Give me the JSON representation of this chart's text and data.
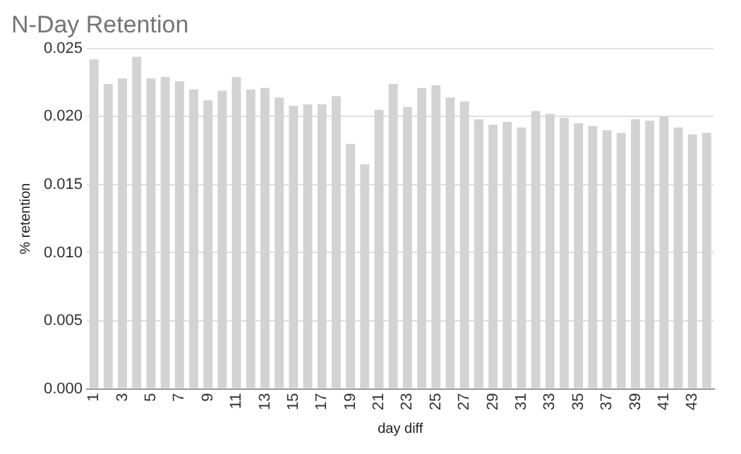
{
  "chart_data": {
    "type": "bar",
    "title": "N-Day Retention",
    "xlabel": "day diff",
    "ylabel": "% retention",
    "categories": [
      "1",
      null,
      "3",
      null,
      "5",
      null,
      "7",
      null,
      "9",
      null,
      "11",
      null,
      "13",
      null,
      "15",
      null,
      "17",
      null,
      "19",
      null,
      "21",
      null,
      "23",
      null,
      "25",
      null,
      "27",
      null,
      "29",
      null,
      "31",
      null,
      "33",
      null,
      "35",
      null,
      "37",
      null,
      "39",
      null,
      "41",
      null,
      "43",
      null
    ],
    "values": [
      0.0242,
      0.0224,
      0.0228,
      0.0244,
      0.0228,
      0.0229,
      0.0226,
      0.022,
      0.0212,
      0.0219,
      0.0229,
      0.022,
      0.0221,
      0.0214,
      0.0208,
      0.0209,
      0.0209,
      0.0215,
      0.018,
      0.0165,
      0.0205,
      0.0224,
      0.0207,
      0.0221,
      0.0223,
      0.0214,
      0.0211,
      0.0198,
      0.0194,
      0.0196,
      0.0192,
      0.0204,
      0.0202,
      0.0199,
      0.0195,
      0.0193,
      0.019,
      0.0188,
      0.0198,
      0.0197,
      0.02,
      0.0192,
      0.0187,
      0.0188
    ],
    "color": "#d3d3d3",
    "ylim": [
      0,
      0.025
    ],
    "yticks": [
      {
        "value": 0,
        "label": "0.000"
      },
      {
        "value": 0.005,
        "label": "0.005"
      },
      {
        "value": 0.01,
        "label": "0.010"
      },
      {
        "value": 0.015,
        "label": "0.015"
      },
      {
        "value": 0.02,
        "label": "0.020"
      },
      {
        "value": 0.025,
        "label": "0.025"
      }
    ],
    "grid": "y",
    "legend": false
  }
}
